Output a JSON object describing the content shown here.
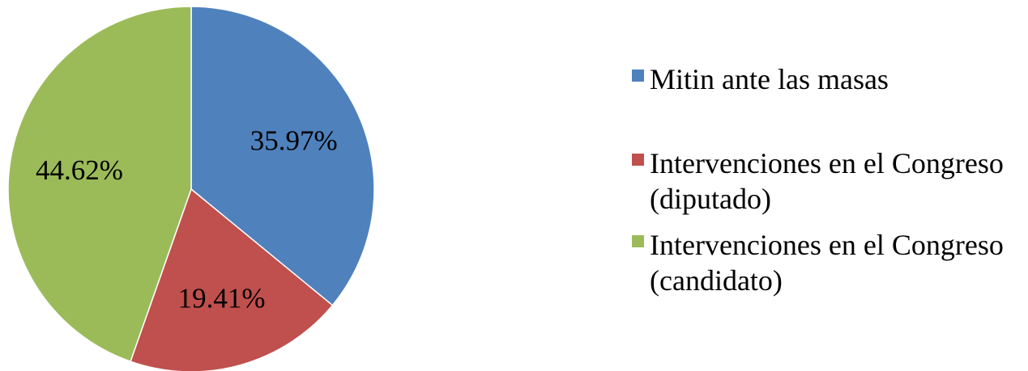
{
  "chart_data": {
    "type": "pie",
    "slices": [
      {
        "name_lines": [
          "Mitin ante las masas"
        ],
        "value": 35.97,
        "label": "35.97%",
        "color": "#4F81BD"
      },
      {
        "name_lines": [
          "Intervenciones en el Congreso",
          "(diputado)"
        ],
        "value": 19.41,
        "label": "19.41%",
        "color": "#C0504D"
      },
      {
        "name_lines": [
          "Intervenciones en el Congreso",
          "(candidato)"
        ],
        "value": 44.62,
        "label": "44.62%",
        "color": "#9BBB59"
      }
    ],
    "start_angle": "12 o'clock",
    "direction": "clockwise",
    "legend_position": "right"
  }
}
